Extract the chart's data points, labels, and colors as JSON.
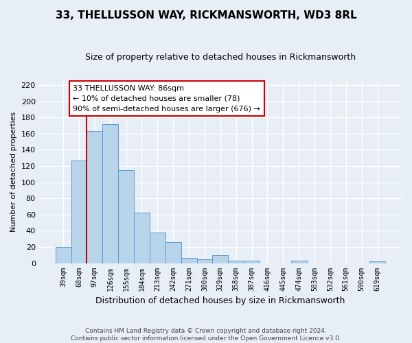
{
  "title": "33, THELLUSSON WAY, RICKMANSWORTH, WD3 8RL",
  "subtitle": "Size of property relative to detached houses in Rickmansworth",
  "xlabel": "Distribution of detached houses by size in Rickmansworth",
  "ylabel": "Number of detached properties",
  "bar_labels": [
    "39sqm",
    "68sqm",
    "97sqm",
    "126sqm",
    "155sqm",
    "184sqm",
    "213sqm",
    "242sqm",
    "271sqm",
    "300sqm",
    "329sqm",
    "358sqm",
    "387sqm",
    "416sqm",
    "445sqm",
    "474sqm",
    "503sqm",
    "532sqm",
    "561sqm",
    "590sqm",
    "619sqm"
  ],
  "bar_values": [
    20,
    127,
    163,
    172,
    115,
    62,
    38,
    26,
    6,
    5,
    10,
    3,
    3,
    0,
    0,
    3,
    0,
    0,
    0,
    0,
    2
  ],
  "bar_color": "#b8d4ea",
  "bar_edge_color": "#5b9bd5",
  "vline_color": "#cc0000",
  "annotation_title": "33 THELLUSSON WAY: 86sqm",
  "annotation_line1": "← 10% of detached houses are smaller (78)",
  "annotation_line2": "90% of semi-detached houses are larger (676) →",
  "annotation_box_color": "white",
  "annotation_box_edge": "#cc0000",
  "ylim": [
    0,
    225
  ],
  "yticks": [
    0,
    20,
    40,
    60,
    80,
    100,
    120,
    140,
    160,
    180,
    200,
    220
  ],
  "footnote1": "Contains HM Land Registry data © Crown copyright and database right 2024.",
  "footnote2": "Contains public sector information licensed under the Open Government Licence v3.0.",
  "bg_color": "#e8eef5",
  "plot_bg_color": "#e8eef5",
  "grid_color": "#ffffff"
}
